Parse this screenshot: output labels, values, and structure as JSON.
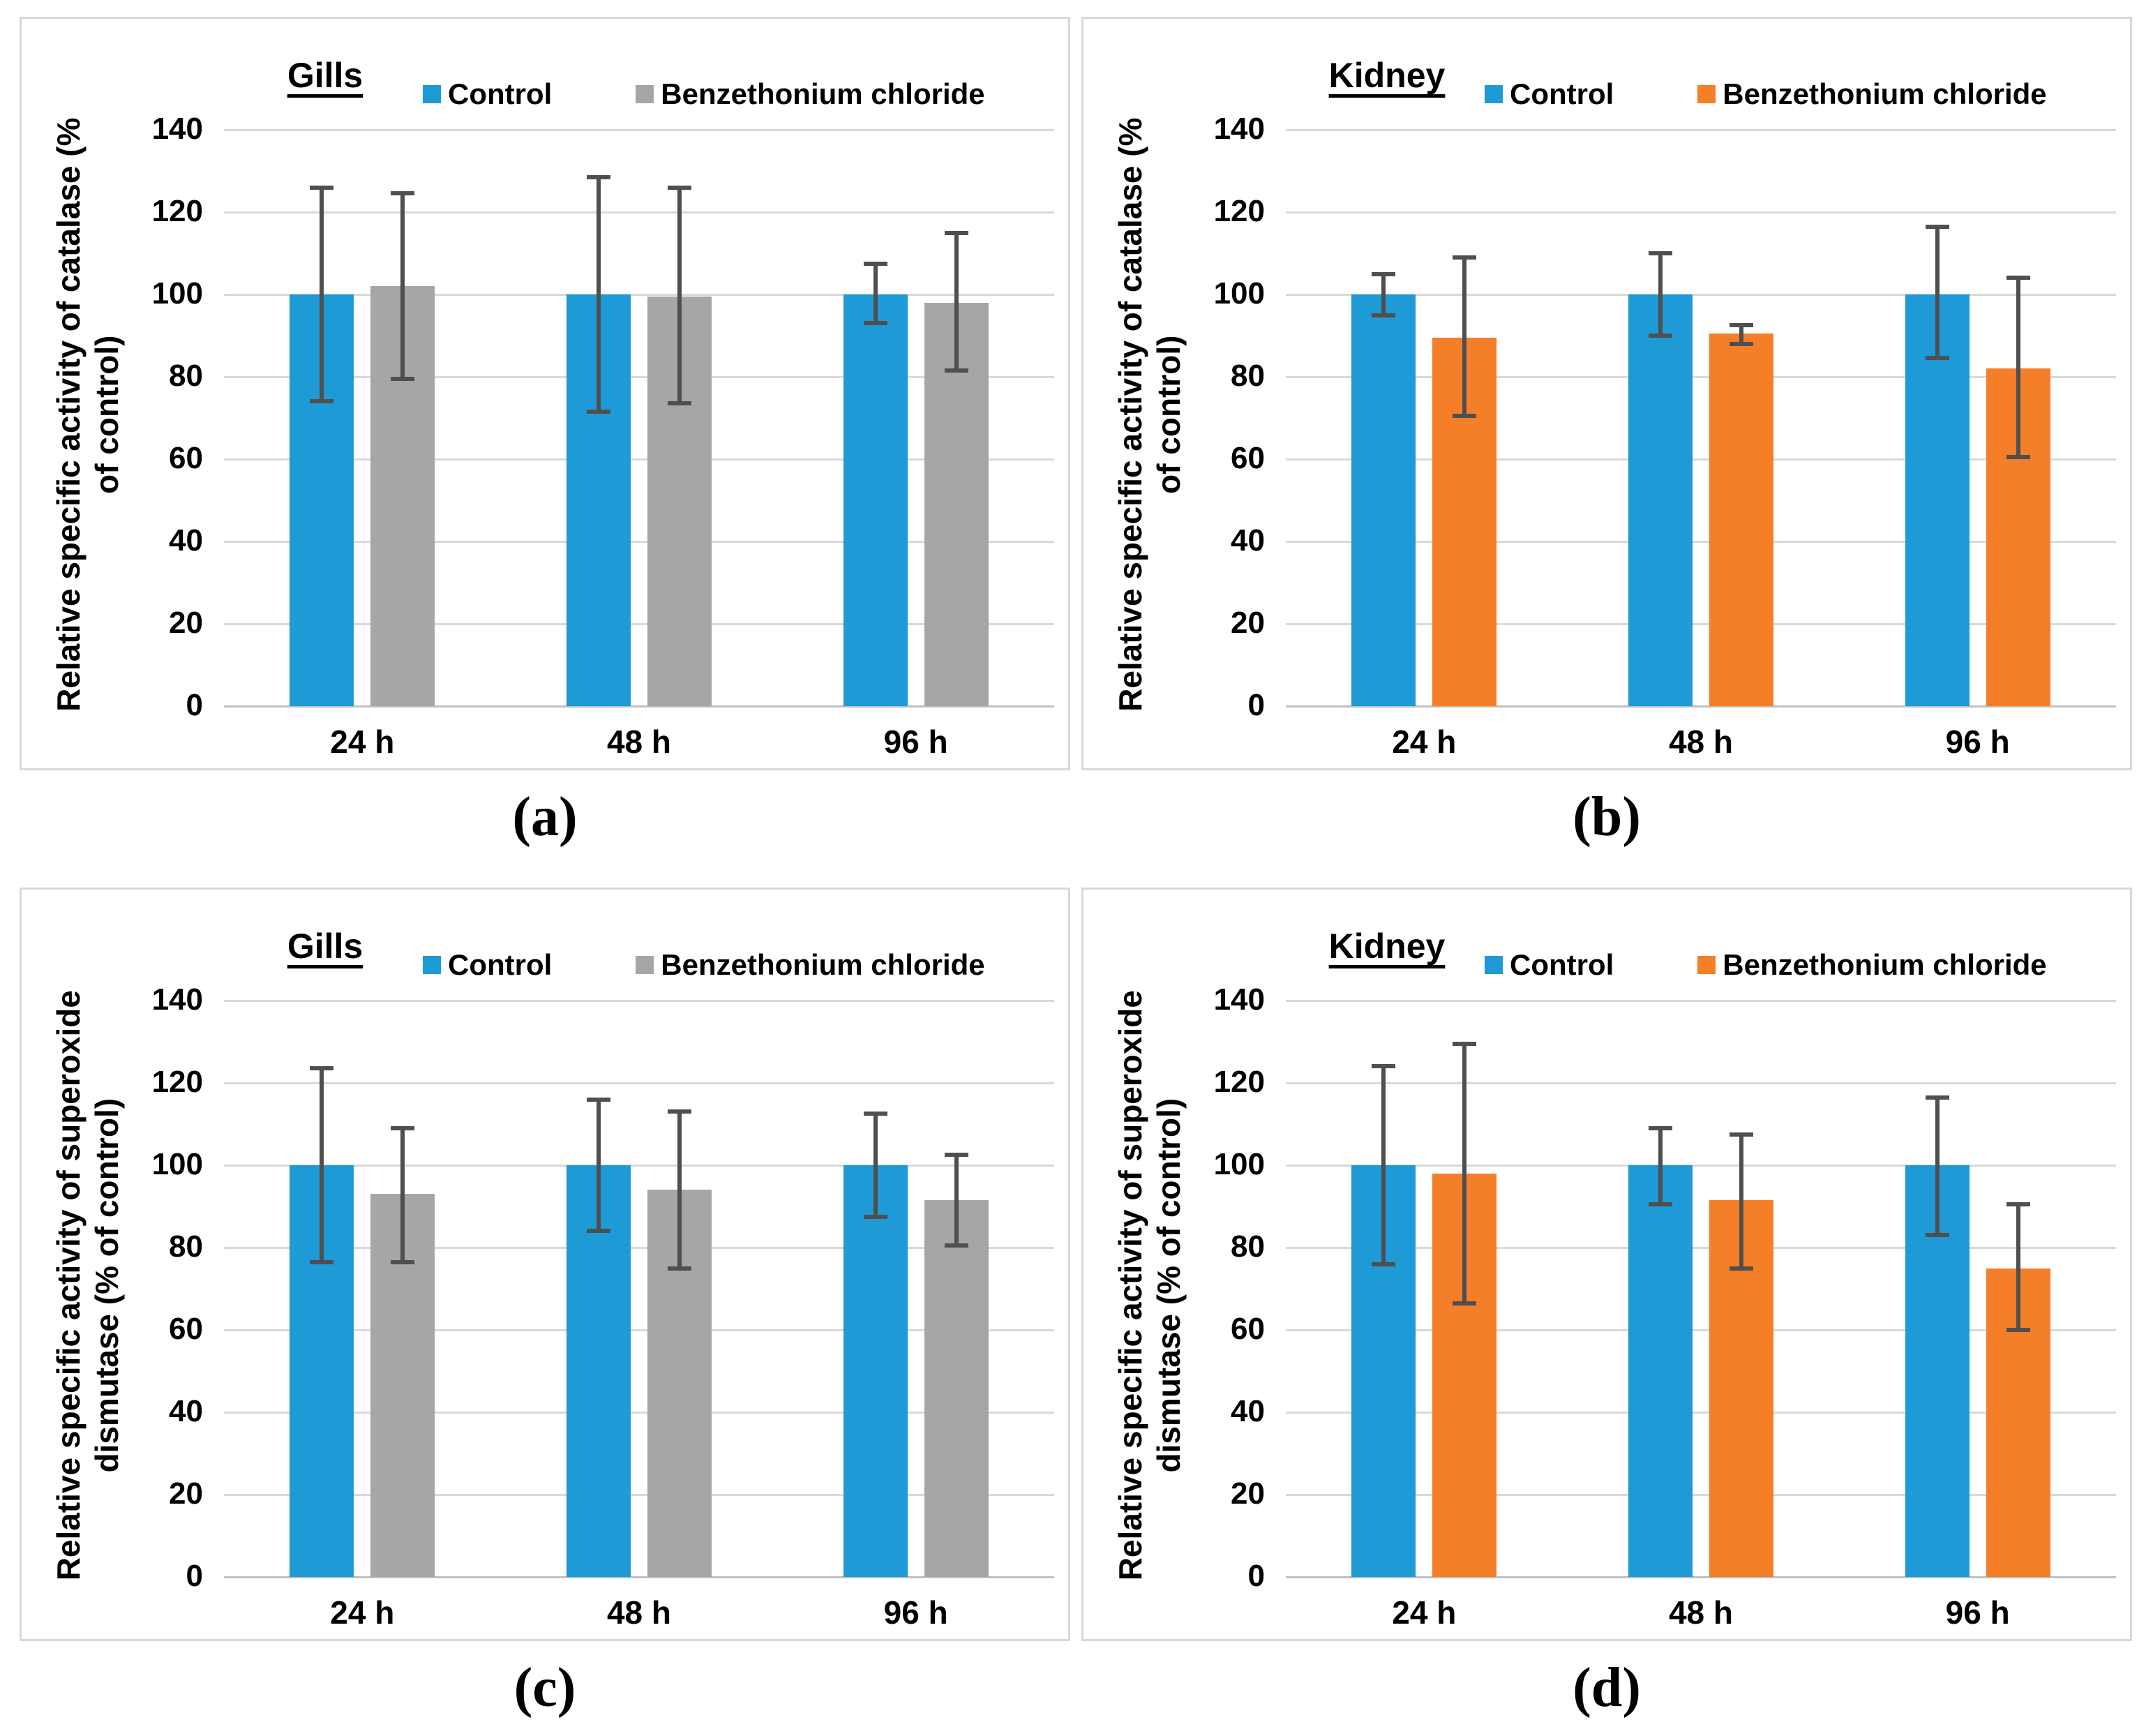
{
  "colors": {
    "control": "#1e9ad6",
    "treatment_gray": "#a6a6a6",
    "treatment_orange": "#f57e28",
    "error_bar": "#4f4f4f",
    "gridline": "#d9d9d9",
    "axis_line": "#bfbfbf",
    "panel_border": "#d8d8d8",
    "text": "#000000"
  },
  "chart_data": [
    {
      "id": "a",
      "label": "(a)",
      "type": "bar",
      "title": "Gills",
      "ylabel_line1": "Relative specific activity of catalase (%",
      "ylabel_line2": "of control)",
      "ylim": [
        0,
        150
      ],
      "yticks": [
        0,
        20,
        40,
        60,
        80,
        100,
        120,
        140
      ],
      "grid": true,
      "legend_position": "top",
      "categories": [
        "24 h",
        "48 h",
        "96 h"
      ],
      "series": [
        {
          "name": "Control",
          "color_key": "control",
          "values": [
            100,
            100,
            100
          ],
          "err_up": [
            26,
            28.5,
            7.5
          ],
          "err_dn": [
            26,
            28.5,
            7
          ]
        },
        {
          "name": "Benzethonium chloride",
          "color_key": "treatment_gray",
          "values": [
            102,
            99.5,
            98
          ],
          "err_up": [
            22.5,
            26.5,
            17
          ],
          "err_dn": [
            22.5,
            26,
            16.5
          ]
        }
      ]
    },
    {
      "id": "b",
      "label": "(b)",
      "type": "bar",
      "title": "Kidney",
      "ylabel_line1": "Relative specific activity of catalase (%",
      "ylabel_line2": "of control)",
      "ylim": [
        0,
        150
      ],
      "yticks": [
        0,
        20,
        40,
        60,
        80,
        100,
        120,
        140
      ],
      "grid": true,
      "legend_position": "top",
      "categories": [
        "24 h",
        "48 h",
        "96 h"
      ],
      "series": [
        {
          "name": "Control",
          "color_key": "control",
          "values": [
            100,
            100,
            100
          ],
          "err_up": [
            5,
            10,
            16.5
          ],
          "err_dn": [
            5,
            10,
            15.5
          ]
        },
        {
          "name": "Benzethonium chloride",
          "color_key": "treatment_orange",
          "values": [
            89.5,
            90.5,
            82
          ],
          "err_up": [
            19.5,
            2,
            22
          ],
          "err_dn": [
            19,
            2.5,
            21.5
          ]
        }
      ]
    },
    {
      "id": "c",
      "label": "(c)",
      "type": "bar",
      "title": "Gills",
      "ylabel_line1": "Relative specific activity of superoxide",
      "ylabel_line2": "dismutase (% of control)",
      "ylim": [
        0,
        150
      ],
      "yticks": [
        0,
        20,
        40,
        60,
        80,
        100,
        120,
        140
      ],
      "grid": true,
      "legend_position": "top",
      "categories": [
        "24 h",
        "48 h",
        "96 h"
      ],
      "series": [
        {
          "name": "Control",
          "color_key": "control",
          "values": [
            100,
            100,
            100
          ],
          "err_up": [
            23.5,
            16,
            12.5
          ],
          "err_dn": [
            23.5,
            16,
            12.5
          ]
        },
        {
          "name": "Benzethonium chloride",
          "color_key": "treatment_gray",
          "values": [
            93,
            94,
            91.5
          ],
          "err_up": [
            16,
            19,
            11
          ],
          "err_dn": [
            16.5,
            19,
            11
          ]
        }
      ]
    },
    {
      "id": "d",
      "label": "(d)",
      "type": "bar",
      "title": "Kidney",
      "ylabel_line1": "Relative specific activity of superoxide",
      "ylabel_line2": "dismutase (% of control)",
      "ylim": [
        0,
        150
      ],
      "yticks": [
        0,
        20,
        40,
        60,
        80,
        100,
        120,
        140
      ],
      "grid": true,
      "legend_position": "top",
      "categories": [
        "24 h",
        "48 h",
        "96 h"
      ],
      "series": [
        {
          "name": "Control",
          "color_key": "control",
          "values": [
            100,
            100,
            100
          ],
          "err_up": [
            24,
            9,
            16.5
          ],
          "err_dn": [
            24,
            9.5,
            17
          ]
        },
        {
          "name": "Benzethonium chloride",
          "color_key": "treatment_orange",
          "values": [
            98,
            91.5,
            75
          ],
          "err_up": [
            31.5,
            16,
            15.5
          ],
          "err_dn": [
            31.5,
            16.5,
            15
          ]
        }
      ]
    }
  ]
}
